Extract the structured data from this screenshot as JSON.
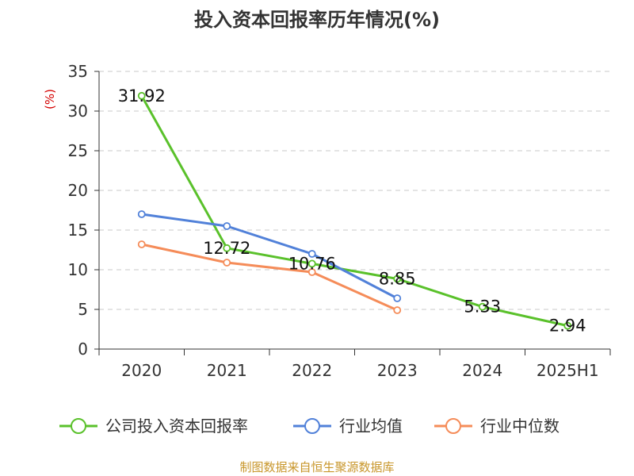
{
  "chart_data": {
    "type": "line",
    "title": "投入资本回报率历年情况(%)",
    "ylabel": "(%)",
    "ylim": [
      0,
      35
    ],
    "yticks": [
      0,
      5,
      10,
      15,
      20,
      25,
      30,
      35
    ],
    "categories": [
      "2020",
      "2021",
      "2022",
      "2023",
      "2024",
      "2025H1"
    ],
    "grid": true,
    "legend_position": "bottom",
    "series": [
      {
        "name": "公司投入资本回报率",
        "color": "#5ac12b",
        "values": [
          31.92,
          12.72,
          10.76,
          8.85,
          5.33,
          2.94
        ],
        "labels": [
          "31.92",
          "12.72",
          "10.76",
          "8.85",
          "5.33",
          "2.94"
        ]
      },
      {
        "name": "行业均值",
        "color": "#5181d9",
        "values": [
          17.0,
          15.5,
          12.0,
          6.4,
          null,
          null
        ]
      },
      {
        "name": "行业中位数",
        "color": "#f58c59",
        "values": [
          13.2,
          10.9,
          9.7,
          4.9,
          null,
          null
        ]
      }
    ],
    "source": "制图数据来自恒生聚源数据库"
  }
}
